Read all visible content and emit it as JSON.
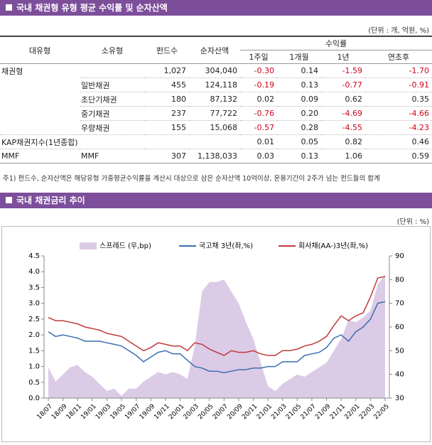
{
  "header": {
    "title": "국내 채권형 유형 평균 수익률 및 순자산액",
    "unit": "(단위 : 개, 억원, %)"
  },
  "table": {
    "columns": [
      "대유형",
      "소유형",
      "펀드수",
      "순자산액",
      "1주일",
      "1개월",
      "1년",
      "연초후"
    ],
    "group": "수익률",
    "rows": [
      [
        "채권형",
        null,
        "1,027",
        "304,040",
        "-0.30",
        "0.14",
        "-1.59",
        "-1.70"
      ],
      [
        null,
        "일반채권",
        "455",
        "124,118",
        "-0.19",
        "0.13",
        "-0.77",
        "-0.91"
      ],
      [
        null,
        "초단기채권",
        "180",
        "87,132",
        "0.02",
        "0.09",
        "0.62",
        "0.35"
      ],
      [
        null,
        "중기채권",
        "237",
        "77,722",
        "-0.76",
        "0.20",
        "-4.69",
        "-4.66"
      ],
      [
        null,
        "우량채권",
        "155",
        "15,068",
        "-0.57",
        "0.28",
        "-4.55",
        "-4.23"
      ],
      [
        "KAP채권지수(1년종합)",
        null,
        null,
        null,
        "0.01",
        "0.05",
        "0.82",
        "0.46"
      ],
      [
        "MMF",
        "MMF",
        "307",
        "1,138,033",
        "0.03",
        "0.13",
        "1.06",
        "0.59"
      ]
    ]
  },
  "note": "주1) 펀드수, 순자산액은 해당유형 가중평균수익률을 계산시 대상으로 삼은 순자산액 10억이상, 운용기간이 2주가 넘는 펀드들의 합계",
  "chart_section": {
    "title": "국내 채권금리 추이",
    "unit": "(단위 : %)"
  },
  "chart_data": {
    "type": "line",
    "categories": [
      "18/07",
      null,
      "18/09",
      null,
      "18/11",
      null,
      "19/01",
      null,
      "19/03",
      null,
      "19/05",
      null,
      "19/07",
      null,
      "19/09",
      null,
      "19/11",
      null,
      "20/01",
      null,
      "20/03",
      null,
      "20/05",
      null,
      "20/07",
      null,
      "20/09",
      null,
      "20/11",
      null,
      "21/01",
      null,
      "21/03",
      null,
      "21/05",
      null,
      "21/07",
      null,
      "21/09",
      null,
      "21/11",
      null,
      "22/01",
      null,
      "22/03",
      null,
      "22/05"
    ],
    "series": [
      {
        "name": "스프레드 (우,bp)",
        "type": "area",
        "axis": "y2",
        "color": "#dccbe6",
        "values": [
          43,
          37,
          40,
          43,
          44,
          41,
          39,
          36,
          33,
          34,
          31,
          34,
          34,
          37,
          39,
          41,
          40,
          41,
          40,
          38,
          52,
          75,
          79,
          79,
          80,
          75,
          70,
          62,
          55,
          45,
          35,
          33,
          36,
          38,
          40,
          39,
          41,
          43,
          45,
          50,
          55,
          63,
          62,
          64,
          67,
          78,
          82
        ]
      },
      {
        "name": "국고채 3년(좌,%)",
        "type": "line",
        "color": "#3a6fb0",
        "values": [
          2.1,
          1.95,
          2.0,
          1.95,
          1.9,
          1.8,
          1.8,
          1.8,
          1.75,
          1.7,
          1.65,
          1.5,
          1.35,
          1.15,
          1.3,
          1.45,
          1.5,
          1.4,
          1.4,
          1.2,
          1.0,
          0.95,
          0.85,
          0.85,
          0.8,
          0.85,
          0.9,
          0.9,
          0.95,
          0.95,
          1.0,
          1.0,
          1.15,
          1.15,
          1.15,
          1.35,
          1.4,
          1.45,
          1.6,
          1.9,
          2.0,
          1.8,
          2.1,
          2.25,
          2.5,
          3.0,
          3.05
        ]
      },
      {
        "name": "회사채(AA-)3년(좌,%)",
        "type": "line",
        "color": "#c0393b",
        "values": [
          2.55,
          2.45,
          2.45,
          2.4,
          2.35,
          2.25,
          2.2,
          2.15,
          2.05,
          2.0,
          1.95,
          1.8,
          1.65,
          1.5,
          1.6,
          1.75,
          1.7,
          1.65,
          1.65,
          1.5,
          1.75,
          1.7,
          1.55,
          1.45,
          1.35,
          1.5,
          1.45,
          1.45,
          1.5,
          1.4,
          1.35,
          1.35,
          1.5,
          1.5,
          1.55,
          1.65,
          1.7,
          1.8,
          1.95,
          2.3,
          2.6,
          2.45,
          2.6,
          2.7,
          3.2,
          3.8,
          3.85
        ]
      }
    ],
    "ylim": [
      0,
      4.5
    ],
    "yticks": [
      {
        "value": 0,
        "label": "0.0"
      },
      0.5,
      {
        "value": 1,
        "label": "1.0"
      },
      1.5,
      {
        "value": 2,
        "label": "2.0"
      },
      2.5,
      {
        "value": 3,
        "label": "3.0"
      },
      3.5,
      {
        "value": 4,
        "label": "4.0"
      },
      4.5
    ],
    "y2lim": [
      30,
      90
    ],
    "y2ticks": [
      30,
      40,
      50,
      60,
      70,
      80,
      90
    ]
  }
}
